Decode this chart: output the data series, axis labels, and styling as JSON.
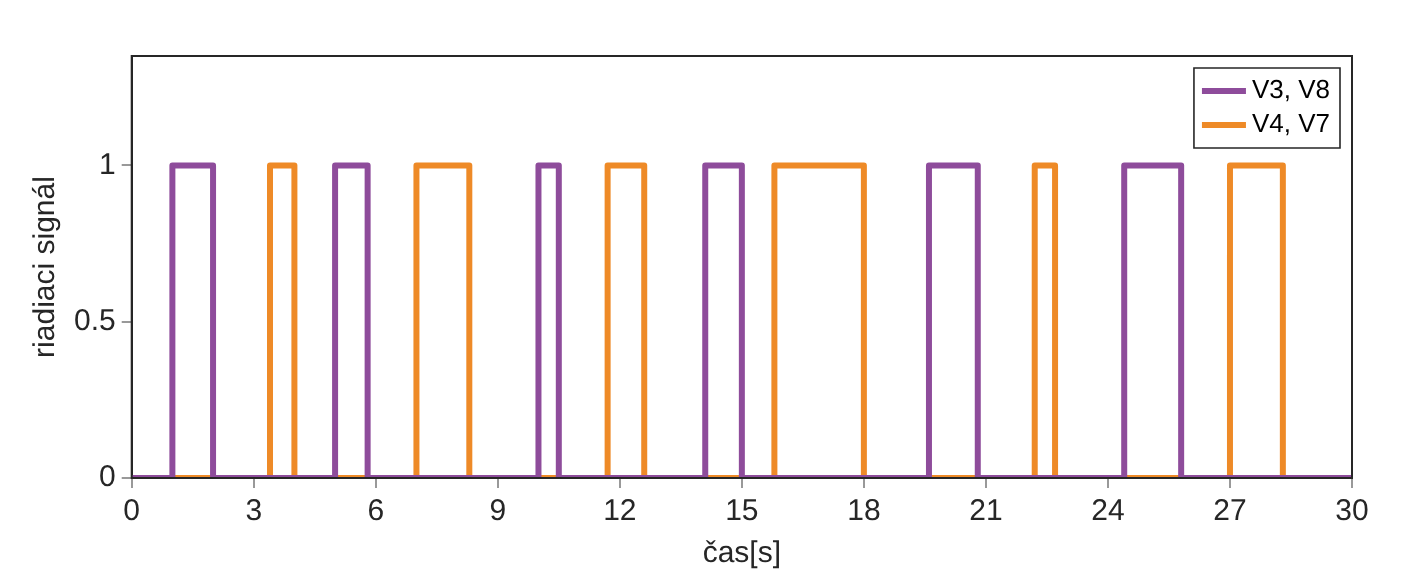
{
  "chart_data": {
    "type": "step",
    "xlabel": "čas[s]",
    "ylabel": "riadiaci signál",
    "xlim": [
      0,
      30
    ],
    "xticks": [
      0,
      3,
      6,
      9,
      12,
      15,
      18,
      21,
      24,
      27,
      30
    ],
    "ylim": [
      0,
      1.35
    ],
    "yticks": [
      0,
      0.5,
      1
    ],
    "grid": false,
    "legend": "top right",
    "series": [
      {
        "name": "V3, V8",
        "color": "#8e4c9b",
        "x": [
          0,
          1,
          2,
          5,
          5.8,
          10,
          10.5,
          14.1,
          15,
          19.6,
          20.8,
          24.4,
          25.8,
          30
        ],
        "values": [
          0,
          1,
          0,
          1,
          0,
          1,
          0,
          1,
          0,
          1,
          0,
          1,
          0,
          0
        ]
      },
      {
        "name": "V4, V7",
        "color": "#ee8a27",
        "x": [
          0,
          3.4,
          4,
          7,
          8.3,
          11.7,
          12.6,
          15.8,
          18,
          22.2,
          22.7,
          27,
          28.3,
          30
        ],
        "values": [
          0,
          1,
          0,
          1,
          0,
          1,
          0,
          1,
          0,
          1,
          0,
          1,
          0,
          0
        ]
      }
    ]
  }
}
